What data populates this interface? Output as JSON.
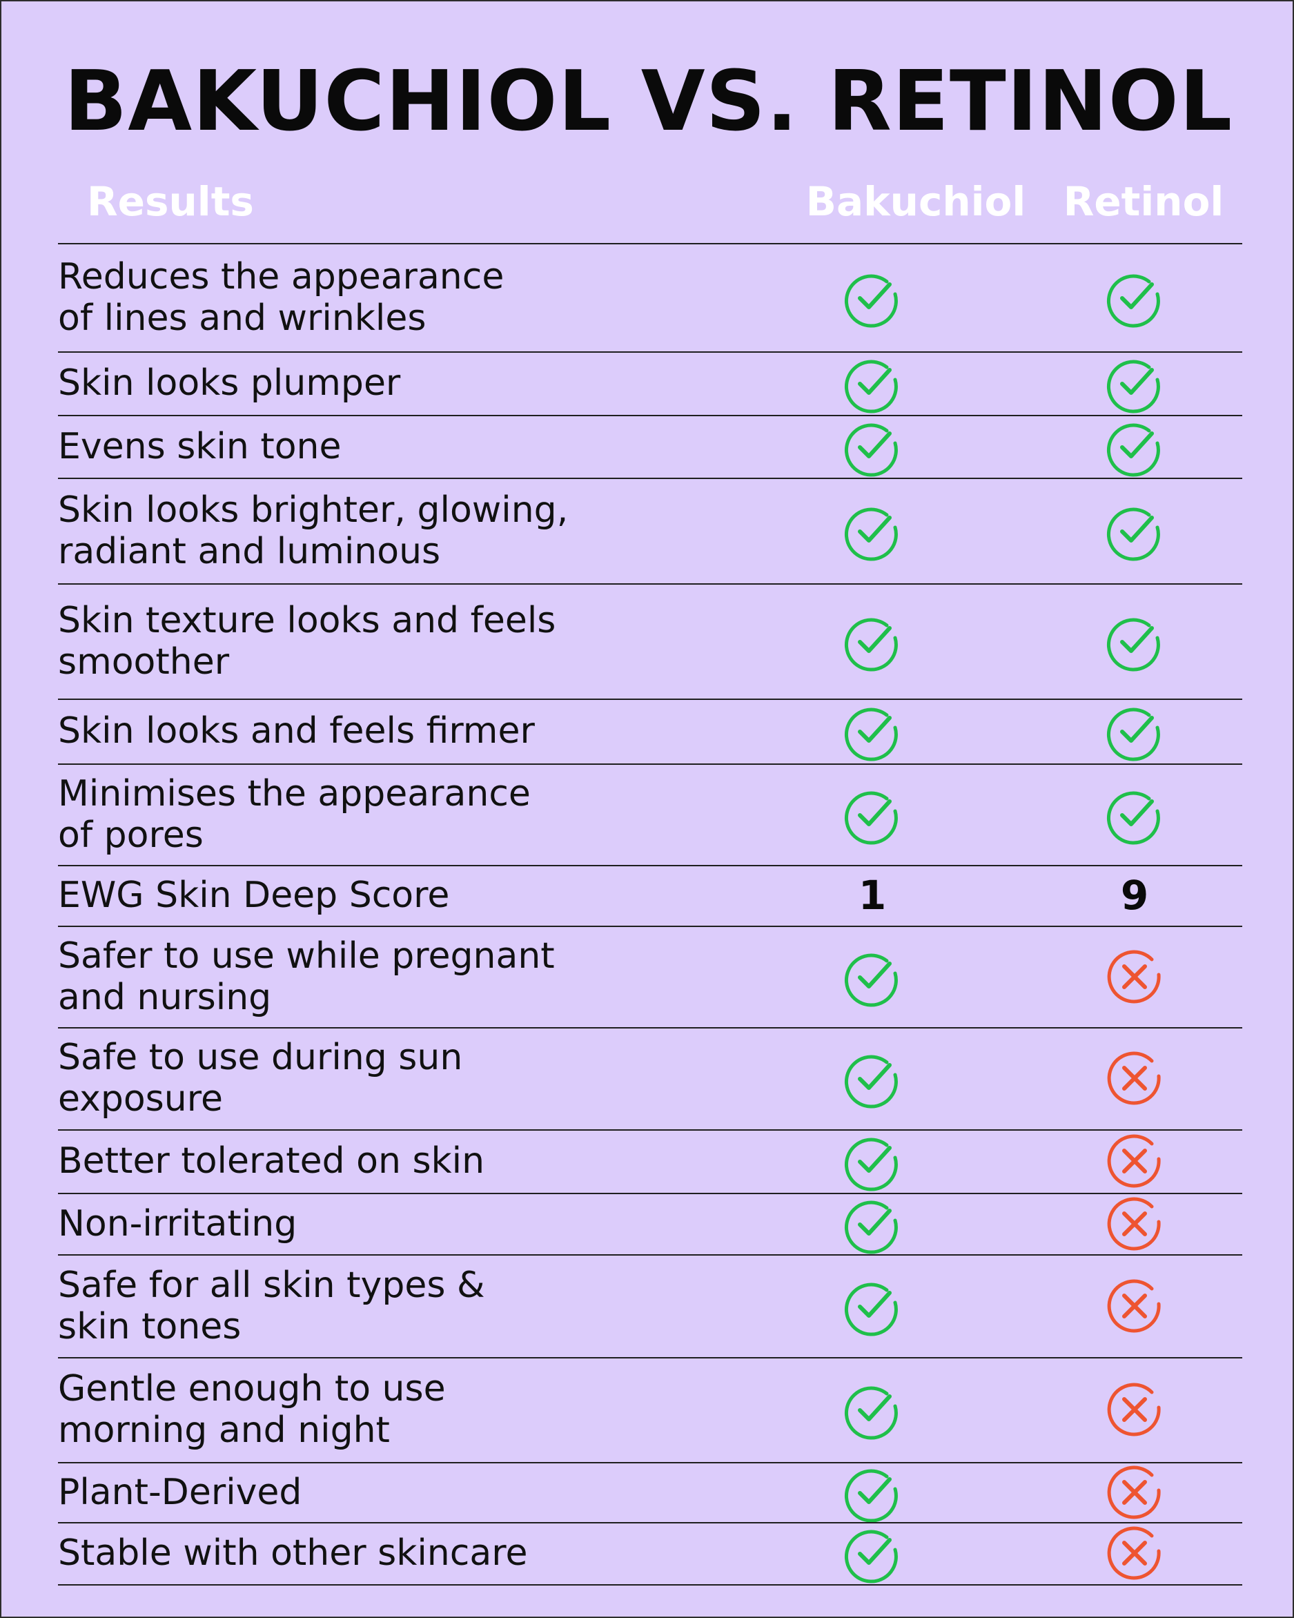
{
  "title": "BAKUCHIOL VS. RETINOL",
  "headers": {
    "results": "Results",
    "bakuchiol": "Bakuchiol",
    "retinol": "Retinol"
  },
  "colors": {
    "background": "#dcccfb",
    "check": "#1fbf4a",
    "cross": "#ee5431",
    "header_text": "#ffffff"
  },
  "rows": [
    {
      "label": "Reduces the appearance\nof lines and wrinkles",
      "bakuchiol": "check",
      "retinol": "check"
    },
    {
      "label": "Skin looks plumper",
      "bakuchiol": "check",
      "retinol": "check"
    },
    {
      "label": "Evens skin tone",
      "bakuchiol": "check",
      "retinol": "check"
    },
    {
      "label": "Skin looks brighter, glowing,\nradiant and luminous",
      "bakuchiol": "check",
      "retinol": "check"
    },
    {
      "label": "Skin texture looks and feels\nsmoother",
      "bakuchiol": "check",
      "retinol": "check"
    },
    {
      "label": "Skin looks and feels firmer",
      "bakuchiol": "check",
      "retinol": "check"
    },
    {
      "label": "Minimises the appearance\nof pores",
      "bakuchiol": "check",
      "retinol": "check"
    },
    {
      "label": "EWG Skin Deep Score",
      "bakuchiol": "1",
      "retinol": "9"
    },
    {
      "label": "Safer to use while pregnant\nand nursing",
      "bakuchiol": "check",
      "retinol": "cross"
    },
    {
      "label": "Safe to use during sun\nexposure",
      "bakuchiol": "check",
      "retinol": "cross"
    },
    {
      "label": "Better tolerated on skin",
      "bakuchiol": "check",
      "retinol": "cross"
    },
    {
      "label": "Non-irritating",
      "bakuchiol": "check",
      "retinol": "cross"
    },
    {
      "label": "Safe for all skin types &\nskin tones",
      "bakuchiol": "check",
      "retinol": "cross"
    },
    {
      "label": "Gentle enough to use\nmorning and night",
      "bakuchiol": "check",
      "retinol": "cross"
    },
    {
      "label": "Plant-Derived",
      "bakuchiol": "check",
      "retinol": "cross"
    },
    {
      "label": "Stable with other skincare",
      "bakuchiol": "check",
      "retinol": "cross"
    }
  ]
}
